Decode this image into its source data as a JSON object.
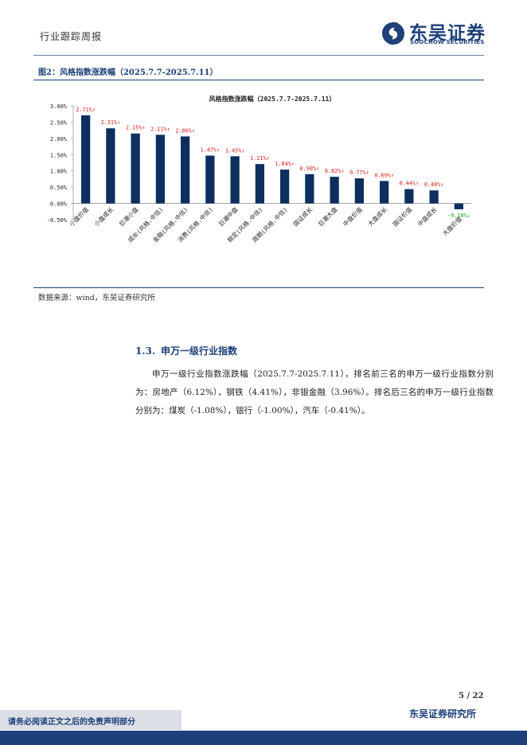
{
  "header": {
    "report_type": "行业跟踪周报",
    "logo_cn": "东吴证券",
    "logo_en": "SOOCHOW SECURITIES",
    "brand_color": "#1d3f7a"
  },
  "figure": {
    "label": "图2：风格指数涨跌幅（2025.7.7-2025.7.11）",
    "source": "数据来源：wind，东吴证券研究所"
  },
  "chart_data": {
    "type": "bar",
    "title": "风格指数涨跌幅（2025.7.7-2025.7.11）",
    "categories": [
      "小盘价值",
      "小盘成长",
      "巨潮小盘",
      "成长(风格.中信)",
      "金融(风格.中信)",
      "消费(风格.中信)",
      "巨潮中盘",
      "稳定(风格.中信)",
      "周期(风格.中信)",
      "国证成长",
      "巨潮大盘",
      "中盘价值",
      "大盘成长",
      "国证价值",
      "中盘成长",
      "大盘价值"
    ],
    "values": [
      2.71,
      2.31,
      2.15,
      2.11,
      2.06,
      1.47,
      1.45,
      1.21,
      1.04,
      0.9,
      0.82,
      0.77,
      0.69,
      0.44,
      0.4,
      -0.18
    ],
    "data_labels": [
      "2.71%↑",
      "2.31%↑",
      "2.15%↑",
      "2.11%↑",
      "2.06%↑",
      "1.47%↑",
      "1.45%↑",
      "1.21%↑",
      "1.04%↑",
      "0.90%↑",
      "0.82%↑",
      "0.77%↑",
      "0.69%↑",
      "0.44%↑",
      "0.40%↑",
      "-0.18%↓"
    ],
    "y_ticks": [
      "3.00%",
      "2.50%",
      "2.00%",
      "1.50%",
      "1.00%",
      "0.50%",
      "0.00%",
      "-0.50%"
    ],
    "ylim": [
      -0.5,
      3.0
    ],
    "xlabel": "",
    "ylabel": "",
    "grid": false,
    "bar_color": "#0d2f5e",
    "up_label_color": "#e01b1b",
    "down_label_color": "#22aa22"
  },
  "section": {
    "number": "1.3.",
    "title": "申万一级行业指数",
    "body": "申万一级行业指数涨跌幅（2025.7.7-2025.7.11），排名前三名的申万一级行业指数分别为：房地产（6.12%），钢铁（4.41%），非银金融（3.96%）。排名后三名的申万一级行业指数分别为：煤炭（-1.08%），银行（-1.00%），汽车（-0.41%）。"
  },
  "footer": {
    "page": "5  /  22",
    "disclaimer": "请务必阅读正文之后的免责声明部分",
    "institute": "东吴证券研究所"
  }
}
